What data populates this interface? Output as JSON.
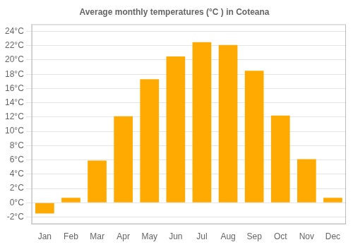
{
  "chart_data": {
    "type": "bar",
    "title": "Average monthly temperatures (°C ) in Coteana",
    "categories": [
      "Jan",
      "Feb",
      "Mar",
      "Apr",
      "May",
      "Jun",
      "Jul",
      "Aug",
      "Sep",
      "Oct",
      "Nov",
      "Dec"
    ],
    "values": [
      -1.5,
      0.7,
      5.9,
      12.1,
      17.3,
      20.5,
      22.5,
      22.1,
      18.5,
      12.2,
      6.1,
      0.7
    ],
    "color": "#FFAA00",
    "ylim": [
      -3,
      25
    ],
    "yticks": [
      {
        "value": -2,
        "label": "-2°C"
      },
      {
        "value": 0,
        "label": "0°C"
      },
      {
        "value": 2,
        "label": "2°C"
      },
      {
        "value": 4,
        "label": "4°C"
      },
      {
        "value": 6,
        "label": "6°C"
      },
      {
        "value": 8,
        "label": "8°C"
      },
      {
        "value": 10,
        "label": "10°C"
      },
      {
        "value": 12,
        "label": "12°C"
      },
      {
        "value": 14,
        "label": "14°C"
      },
      {
        "value": 16,
        "label": "16°C"
      },
      {
        "value": 18,
        "label": "18°C"
      },
      {
        "value": 20,
        "label": "20°C"
      },
      {
        "value": 22,
        "label": "22°C"
      },
      {
        "value": 24,
        "label": "24°C"
      }
    ],
    "grid": true
  }
}
